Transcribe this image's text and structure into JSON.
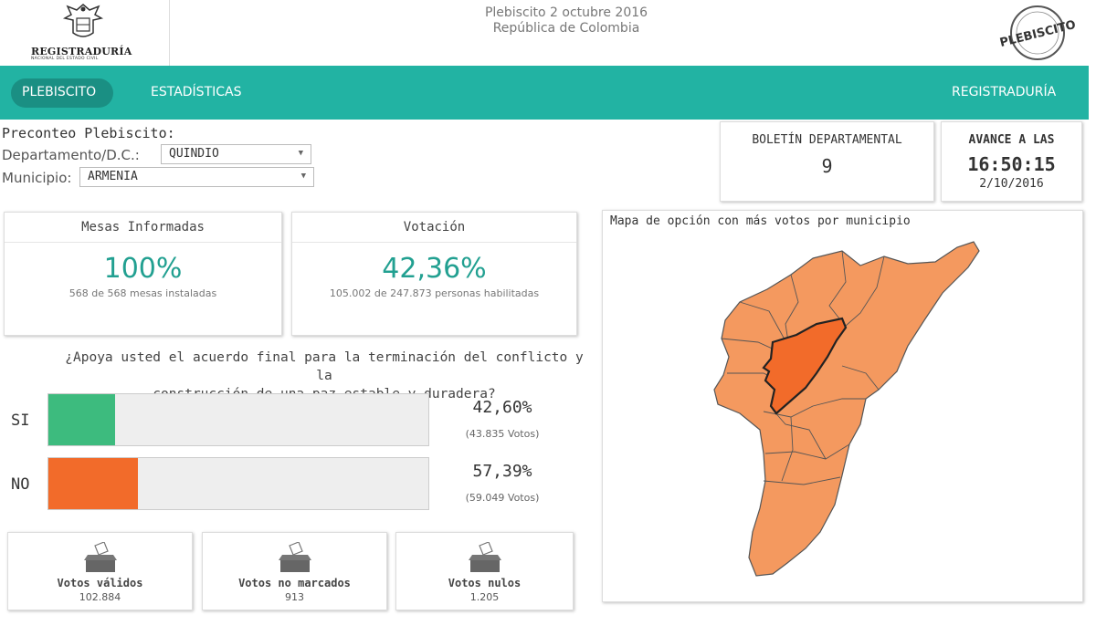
{
  "header": {
    "logo_name": "REGISTRADURÍA",
    "logo_sub": "NACIONAL DEL ESTADO CIVIL",
    "title_line1": "Plebiscito 2 octubre 2016",
    "title_line2": "República de Colombia",
    "seal_text": "PLEBISCITO"
  },
  "nav": {
    "items": [
      "PLEBISCITO",
      "ESTADÍSTICAS"
    ],
    "right": "REGISTRADURÍA",
    "active_color": "#1a8f83",
    "bar_color": "#22b3a3"
  },
  "filters": {
    "heading": "Preconteo Plebiscito:",
    "department_label": "Departamento/D.C.:",
    "department_value": "QUINDIO",
    "municipality_label": "Municipio:",
    "municipality_value": "ARMENIA"
  },
  "bulletin": {
    "label": "BOLETÍN DEPARTAMENTAL",
    "number": "9"
  },
  "progress": {
    "label": "AVANCE A LAS",
    "time": "16:50:15",
    "date": "2/10/2016"
  },
  "mesas": {
    "title": "Mesas Informadas",
    "percent": "100%",
    "detail": "568 de 568 mesas instaladas"
  },
  "votacion": {
    "title": "Votación",
    "percent": "42,36%",
    "detail": "105.002 de 247.873 personas habilitadas"
  },
  "question": {
    "line1": "¿Apoya usted el acuerdo final para la terminación del conflicto y la",
    "line2": "construcción de una paz estable y duradera?"
  },
  "options": [
    {
      "label": "SI",
      "percent": "42,60%",
      "votes": "(43.835 Votos)",
      "fill": 0.175,
      "color": "#3dbb7e"
    },
    {
      "label": "NO",
      "percent": "57,39%",
      "votes": "(59.049 Votos)",
      "fill": 0.235,
      "color": "#f26b2a"
    }
  ],
  "stats": [
    {
      "label": "Votos válidos",
      "value": "102.884"
    },
    {
      "label": "Votos no marcados",
      "value": "913"
    },
    {
      "label": "Votos nulos",
      "value": "1.205"
    }
  ],
  "map": {
    "title": "Mapa de opción con más votos por municipio",
    "fill_color": "#f4995f",
    "highlight_color": "#f26b2a"
  }
}
